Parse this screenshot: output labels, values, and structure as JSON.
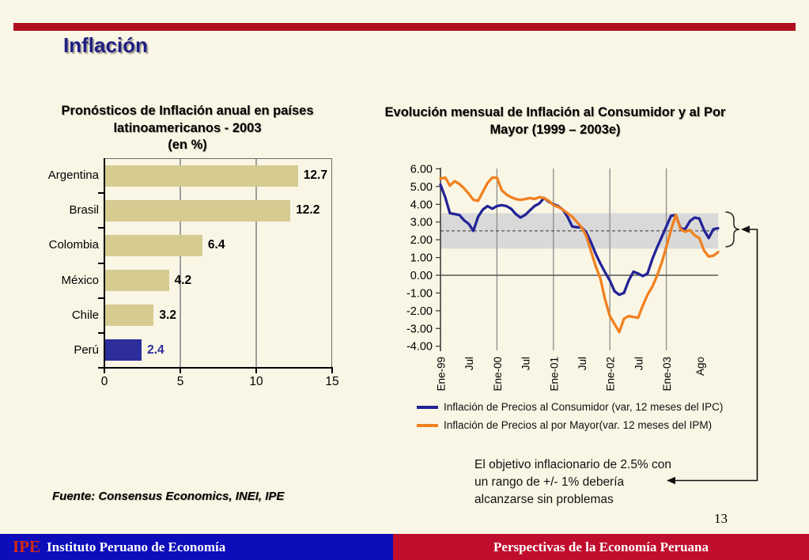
{
  "slide": {
    "title": "Inflación",
    "page_number": "13",
    "source_note": "Fuente: Consensus Economics, INEI, IPE",
    "annotation": "El objetivo inflacionario de 2.5% con\nun rango de +/- 1% debería\nalcanzarse sin problemas",
    "footer": {
      "logo": "IPE",
      "org": "Instituto Peruano de Economía",
      "tagline": "Perspectivas de la Economía Peruana"
    }
  },
  "colors": {
    "background": "#FAF6E5",
    "accent_bar_red": "#B00E20",
    "footer_blue": "#0D0DBA",
    "footer_red": "#C00D2D",
    "title_navy": "#1E1E82",
    "bar_khaki": "#D6CB90",
    "peru_navy": "#2D2D9B",
    "ipc_line_blue": "#232397",
    "ipm_line_orange": "#F0801F",
    "target_band_gray": "#D9D9D9"
  },
  "chart_data": [
    {
      "type": "bar",
      "orientation": "horizontal",
      "title": "Pronósticos de Inflación anual en países\nlatinoamericanos - 2003\n(en %)",
      "categories": [
        "Argentina",
        "Brasil",
        "Colombia",
        "México",
        "Chile",
        "Perú"
      ],
      "values": [
        12.7,
        12.2,
        6.4,
        4.2,
        3.2,
        2.4
      ],
      "value_labels": [
        "12.7",
        "12.2",
        "6.4",
        "4.2",
        "3.2",
        "2.4"
      ],
      "xlim": [
        0,
        15
      ],
      "xticks": [
        0,
        5,
        10,
        15
      ],
      "grid": true,
      "bar_color": "#D6CB90",
      "highlight_index": 5,
      "highlight_color": "#2D2D9B"
    },
    {
      "type": "line",
      "title": "Evolución mensual de Inflación al Consumidor y al Por\nMayor (1999 – 2003e)",
      "x_start": "Ene-99",
      "x_end": "Dic-03",
      "x_tick_labels": [
        "Ene-99",
        "Jul",
        "Ene-00",
        "Jul",
        "Ene-01",
        "Jul",
        "Ene-02",
        "Jul",
        "Ene-03",
        "Ago"
      ],
      "x_tick_months": [
        0,
        6,
        12,
        18,
        24,
        30,
        36,
        42,
        48,
        55
      ],
      "year_gridline_months": [
        12,
        24,
        36,
        48
      ],
      "ylim": [
        -4,
        6
      ],
      "yticks": [
        "6.00",
        "5.00",
        "4.00",
        "3.00",
        "2.00",
        "1.00",
        "0.00",
        "-1.00",
        "-2.00",
        "-3.00",
        "-4.00"
      ],
      "target_band": [
        1.5,
        3.5
      ],
      "target_line": 2.5,
      "legend_position": "bottom",
      "series": [
        {
          "name": "Inflación de Precios al Consumidor (var, 12 meses del IPC)",
          "color": "#232397",
          "values": [
            5.1,
            4.4,
            3.5,
            3.45,
            3.4,
            3.1,
            2.9,
            2.5,
            3.3,
            3.7,
            3.9,
            3.75,
            3.9,
            3.95,
            3.9,
            3.75,
            3.45,
            3.25,
            3.4,
            3.65,
            3.9,
            4.05,
            4.35,
            4.15,
            4.0,
            3.9,
            3.7,
            3.3,
            2.75,
            2.7,
            2.7,
            2.4,
            1.85,
            1.2,
            0.65,
            0.15,
            -0.3,
            -0.9,
            -1.1,
            -1.0,
            -0.3,
            0.2,
            0.1,
            -0.05,
            0.1,
            0.9,
            1.55,
            2.15,
            2.75,
            3.35,
            3.4,
            2.65,
            2.6,
            3.05,
            3.25,
            3.2,
            2.55,
            2.1,
            2.6,
            2.65
          ]
        },
        {
          "name": "Inflación de Precios al por Mayor(var. 12 meses del IPM)",
          "color": "#F0801F",
          "values": [
            5.45,
            5.5,
            5.05,
            5.3,
            5.15,
            4.9,
            4.6,
            4.25,
            4.2,
            4.7,
            5.2,
            5.5,
            5.5,
            4.8,
            4.55,
            4.4,
            4.3,
            4.25,
            4.3,
            4.35,
            4.3,
            4.4,
            4.35,
            4.2,
            3.95,
            3.85,
            3.7,
            3.5,
            3.3,
            3.0,
            2.7,
            2.2,
            1.35,
            0.5,
            -0.2,
            -1.4,
            -2.3,
            -2.75,
            -3.2,
            -2.45,
            -2.3,
            -2.35,
            -2.4,
            -1.7,
            -1.1,
            -0.65,
            -0.05,
            0.7,
            1.6,
            2.55,
            3.4,
            2.6,
            2.45,
            2.55,
            2.25,
            2.1,
            1.4,
            1.05,
            1.1,
            1.3
          ]
        }
      ]
    }
  ]
}
